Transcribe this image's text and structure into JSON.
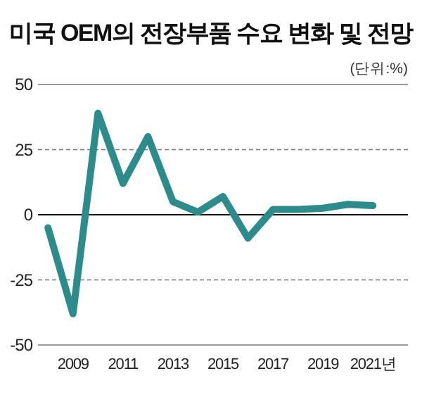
{
  "chart_data": {
    "type": "line",
    "title": "미국 OEM의 전장부품 수요 변화 및 전망",
    "subtitle": "(단위:%)",
    "x": [
      2008,
      2009,
      2010,
      2011,
      2012,
      2013,
      2014,
      2015,
      2016,
      2017,
      2018,
      2019,
      2020,
      2021
    ],
    "series": [
      {
        "color": "#2e8b8c",
        "values": [
          -5,
          -38,
          39,
          12,
          30,
          5,
          1,
          7,
          -9,
          2,
          2,
          2.5,
          4,
          3.5
        ]
      }
    ],
    "xlim": [
      2007.6,
      2022.4
    ],
    "xticks": [
      2009,
      2011,
      2013,
      2015,
      2017,
      2019,
      {
        "value": 2021,
        "label": "2021년"
      }
    ],
    "ylim": [
      -50,
      50
    ],
    "yticks": [
      -50,
      -25,
      0,
      25,
      50
    ],
    "grid": "y",
    "marker": "none",
    "line_style": "solid"
  }
}
